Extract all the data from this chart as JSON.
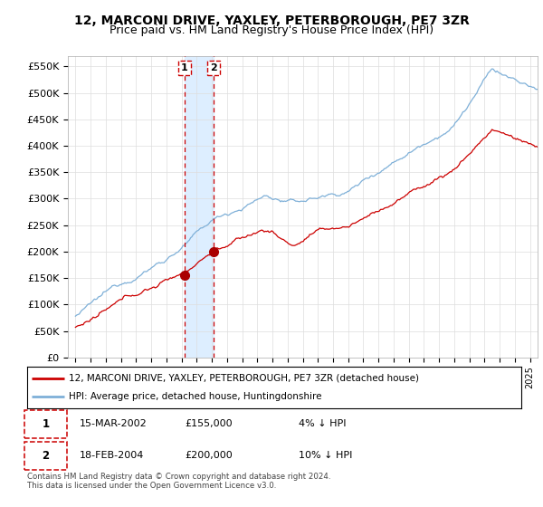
{
  "title": "12, MARCONI DRIVE, YAXLEY, PETERBOROUGH, PE7 3ZR",
  "subtitle": "Price paid vs. HM Land Registry's House Price Index (HPI)",
  "ylabel_ticks": [
    "£0",
    "£50K",
    "£100K",
    "£150K",
    "£200K",
    "£250K",
    "£300K",
    "£350K",
    "£400K",
    "£450K",
    "£500K",
    "£550K"
  ],
  "ytick_values": [
    0,
    50000,
    100000,
    150000,
    200000,
    250000,
    300000,
    350000,
    400000,
    450000,
    500000,
    550000
  ],
  "ylim": [
    0,
    570000
  ],
  "xlim_start": 1994.5,
  "xlim_end": 2025.5,
  "sale1_year": 2002.2,
  "sale1_price": 155000,
  "sale2_year": 2004.12,
  "sale2_price": 200000,
  "red_line_color": "#cc0000",
  "blue_line_color": "#7fb0d8",
  "shade_color": "#ddeeff",
  "marker_color": "#aa0000",
  "vline_color": "#cc0000",
  "background_color": "#ffffff",
  "grid_color": "#dddddd",
  "legend_line1": "12, MARCONI DRIVE, YAXLEY, PETERBOROUGH, PE7 3ZR (detached house)",
  "legend_line2": "HPI: Average price, detached house, Huntingdonshire",
  "table_row1": [
    "1",
    "15-MAR-2002",
    "£155,000",
    "4% ↓ HPI"
  ],
  "table_row2": [
    "2",
    "18-FEB-2004",
    "£200,000",
    "10% ↓ HPI"
  ],
  "footnote": "Contains HM Land Registry data © Crown copyright and database right 2024.\nThis data is licensed under the Open Government Licence v3.0.",
  "title_fontsize": 10,
  "subtitle_fontsize": 9
}
